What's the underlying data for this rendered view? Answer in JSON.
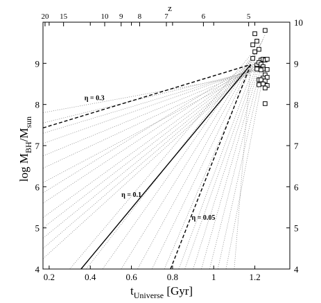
{
  "chart_data": {
    "type": "line",
    "xlabel": {
      "base": "t",
      "sub": "Universe",
      "tail": " [Gyr]"
    },
    "ylabel": {
      "base": "log M",
      "sub1": "BH",
      "mid": "/M",
      "sub2": "sun"
    },
    "top_axis_label": "z",
    "xlim": [
      0.17,
      1.37
    ],
    "ylim": [
      4,
      10
    ],
    "x_ticks": [
      0.2,
      0.4,
      0.6,
      0.8,
      1,
      1.2
    ],
    "x_tick_labels": [
      "0.2",
      "0.4",
      "0.6",
      "0.8",
      "1",
      "1.2"
    ],
    "y_ticks": [
      4,
      5,
      6,
      7,
      8,
      9,
      10
    ],
    "y_tick_labels": [
      "4",
      "5",
      "6",
      "7",
      "8",
      "9",
      "10"
    ],
    "top_ticks": [
      {
        "label": "20",
        "t": 0.18
      },
      {
        "label": "15",
        "t": 0.27
      },
      {
        "label": "10",
        "t": 0.47
      },
      {
        "label": "9",
        "t": 0.55
      },
      {
        "label": "8",
        "t": 0.64
      },
      {
        "label": "7",
        "t": 0.77
      },
      {
        "label": "6",
        "t": 0.95
      },
      {
        "label": "5",
        "t": 1.17
      }
    ],
    "main_tracks": [
      {
        "label": "η = 0.3",
        "style": "dashed",
        "x": [
          0.17,
          1.18
        ],
        "y": [
          7.43,
          8.97
        ]
      },
      {
        "label": "η = 0.1",
        "style": "solid",
        "x": [
          0.355,
          1.18
        ],
        "y": [
          4.0,
          8.97
        ]
      },
      {
        "label": "η = 0.05",
        "style": "dashed",
        "x": [
          0.79,
          1.18
        ],
        "y": [
          4.0,
          8.97
        ]
      }
    ],
    "annotations": [
      {
        "text": "η = 0.3",
        "x": 0.42,
        "y": 8.1
      },
      {
        "text": "η = 0.1",
        "x": 0.6,
        "y": 5.75
      },
      {
        "text": "η = 0.05",
        "x": 0.95,
        "y": 5.2
      }
    ],
    "quasars": {
      "marker": "open-square",
      "x": [
        1.2,
        1.21,
        1.19,
        1.2,
        1.22,
        1.23,
        1.19,
        1.21,
        1.24,
        1.25,
        1.22,
        1.23,
        1.24,
        1.26,
        1.25,
        1.21,
        1.22,
        1.24,
        1.23,
        1.25,
        1.26,
        1.22,
        1.21,
        1.24,
        1.25,
        1.23,
        1.22,
        1.24,
        1.26,
        1.23,
        1.25,
        1.25,
        1.26
      ],
      "y": [
        9.72,
        9.54,
        9.45,
        9.28,
        9.34,
        9.08,
        9.12,
        8.96,
        9.1,
        9.08,
        9.02,
        8.98,
        8.92,
        9.1,
        9.8,
        8.88,
        8.86,
        8.86,
        8.84,
        8.72,
        8.66,
        8.6,
        8.86,
        8.64,
        8.57,
        8.52,
        8.48,
        8.5,
        8.46,
        8.6,
        8.4,
        8.02,
        8.85
      ]
    },
    "dotted_tracks": {
      "style": "dotted",
      "end_x": [
        1.18,
        1.2,
        1.21,
        1.22,
        1.23,
        1.24,
        1.25
      ],
      "end_y": [
        8.72,
        8.82,
        8.86,
        8.9,
        8.92,
        8.94,
        8.96,
        8.98,
        9.0,
        9.02,
        9.04,
        9.06,
        9.1,
        9.15,
        9.2,
        9.25,
        9.3,
        9.4,
        9.5,
        9.6,
        9.7
      ],
      "start_y_at_left": [
        7.8,
        7.55,
        7.3,
        7.05,
        6.75,
        6.45,
        6.1,
        5.85,
        5.6,
        5.25,
        5.0,
        4.75,
        4.5,
        4.25
      ],
      "start_x_at_bottom": [
        0.3,
        0.38,
        0.46,
        0.55,
        0.63,
        0.7,
        0.76,
        0.83,
        0.86,
        0.9,
        0.94,
        0.98,
        1.02,
        1.06,
        1.1
      ]
    }
  }
}
